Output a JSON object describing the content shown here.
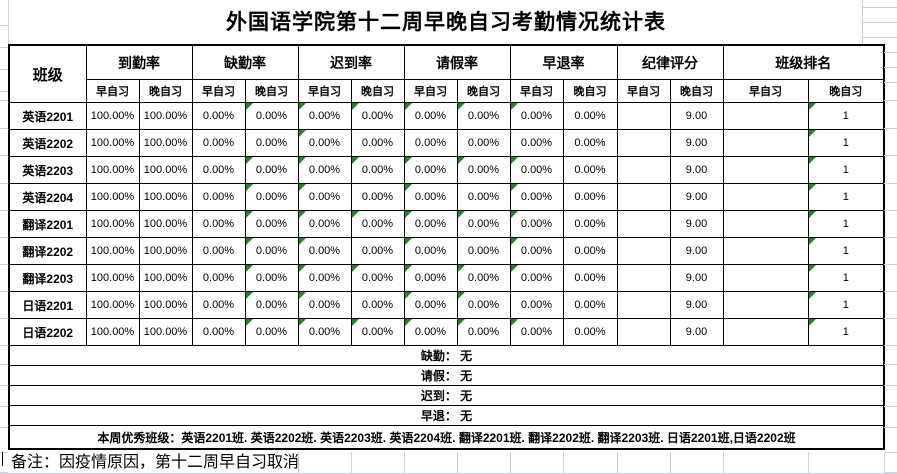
{
  "title": "外国语学院第十二周早晚自习考勤情况统计表",
  "table": {
    "class_header": "班级",
    "groups": [
      "到勤率",
      "缺勤率",
      "迟到率",
      "请假率",
      "早退率",
      "纪律评分",
      "班级排名"
    ],
    "subheaders": [
      "早自习",
      "晚自习",
      "早自习",
      "晚自习",
      "早自习",
      "晚自习",
      "早自习",
      "晚自习",
      "早自习",
      "晚自习",
      "早自习",
      "晚自习",
      "早自习",
      "晚自习"
    ],
    "rows": [
      {
        "name": "英语2201",
        "values": [
          "100.00%",
          "100.00%",
          "0.00%",
          "0.00%",
          "0.00%",
          "0.00%",
          "0.00%",
          "0.00%",
          "0.00%",
          "0.00%",
          "",
          "9.00",
          "",
          "1"
        ],
        "triangles": [
          3,
          4,
          5,
          6,
          7,
          8,
          13
        ]
      },
      {
        "name": "英语2202",
        "values": [
          "100.00%",
          "100.00%",
          "0.00%",
          "0.00%",
          "0.00%",
          "0.00%",
          "0.00%",
          "0.00%",
          "0.00%",
          "0.00%",
          "",
          "9.00",
          "",
          "1"
        ],
        "triangles": [
          4,
          13
        ]
      },
      {
        "name": "英语2203",
        "values": [
          "100.00%",
          "100.00%",
          "0.00%",
          "0.00%",
          "0.00%",
          "0.00%",
          "0.00%",
          "0.00%",
          "0.00%",
          "0.00%",
          "",
          "9.00",
          "",
          "1"
        ],
        "triangles": [
          3,
          4,
          5,
          6,
          7,
          8,
          13
        ]
      },
      {
        "name": "英语2204",
        "values": [
          "100.00%",
          "100.00%",
          "0.00%",
          "0.00%",
          "0.00%",
          "0.00%",
          "0.00%",
          "0.00%",
          "0.00%",
          "0.00%",
          "",
          "9.00",
          "",
          "1"
        ],
        "triangles": [
          3,
          4,
          6,
          8,
          13
        ]
      },
      {
        "name": "翻译2201",
        "values": [
          "100.00%",
          "100.00%",
          "0.00%",
          "0.00%",
          "0.00%",
          "0.00%",
          "0.00%",
          "0.00%",
          "0.00%",
          "0.00%",
          "",
          "9.00",
          "",
          "1"
        ],
        "triangles": [
          3,
          4,
          5,
          6,
          7,
          8,
          13
        ]
      },
      {
        "name": "翻译2202",
        "values": [
          "100.00%",
          "100.00%",
          "0.00%",
          "0.00%",
          "0.00%",
          "0.00%",
          "0.00%",
          "0.00%",
          "0.00%",
          "0.00%",
          "",
          "9.00",
          "",
          "1"
        ],
        "triangles": [
          3,
          4,
          6,
          8,
          13
        ]
      },
      {
        "name": "翻译2203",
        "values": [
          "100.00%",
          "100.00%",
          "0.00%",
          "0.00%",
          "0.00%",
          "0.00%",
          "0.00%",
          "0.00%",
          "0.00%",
          "0.00%",
          "",
          "9.00",
          "",
          "1"
        ],
        "triangles": [
          3,
          4,
          5,
          6,
          7,
          8,
          13
        ]
      },
      {
        "name": "日语2201",
        "values": [
          "100.00%",
          "100.00%",
          "0.00%",
          "0.00%",
          "0.00%",
          "0.00%",
          "0.00%",
          "0.00%",
          "0.00%",
          "0.00%",
          "",
          "9.00",
          "",
          "1"
        ],
        "triangles": [
          3,
          4,
          6,
          7,
          13
        ]
      },
      {
        "name": "日语2202",
        "values": [
          "100.00%",
          "100.00%",
          "0.00%",
          "0.00%",
          "0.00%",
          "0.00%",
          "0.00%",
          "0.00%",
          "0.00%",
          "0.00%",
          "",
          "9.00",
          "",
          "1"
        ],
        "triangles": [
          3,
          4,
          5,
          6,
          7,
          8,
          13
        ]
      }
    ],
    "summary_rows": [
      "缺勤： 无",
      "请假： 无",
      "迟到： 无",
      "早退： 无"
    ],
    "excellent_line": "本周优秀班级：英语2201班. 英语2202班. 英语2203班. 英语2204班. 翻译2201班. 翻译2202班. 翻译2203班. 日语2201班,日语2202班"
  },
  "footer_note": "备注：因疫情原因，第十二周早自习取消",
  "colors": {
    "triangle": "#1e8a1e",
    "gridline": "#c9d2e2",
    "border": "#000000"
  }
}
